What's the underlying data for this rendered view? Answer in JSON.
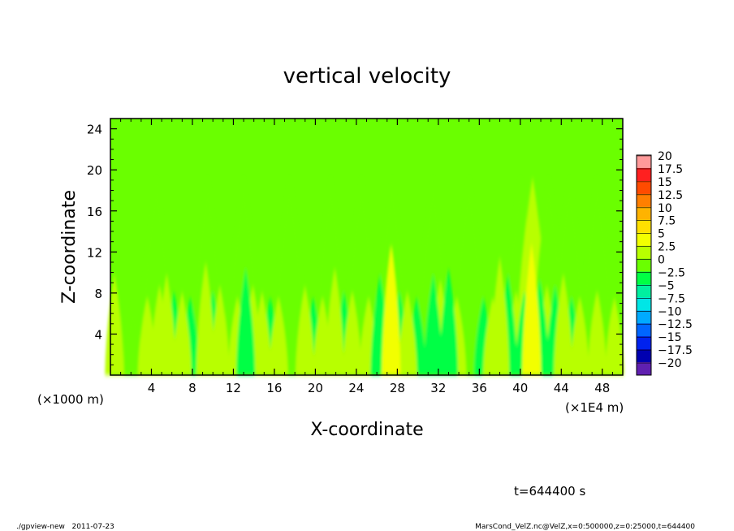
{
  "chart_data": {
    "type": "heatmap",
    "title": "vertical velocity",
    "xlabel": "X-coordinate",
    "ylabel": "Z-coordinate",
    "x_unit_label": "(×1E4 m)",
    "y_unit_label": "(×1000 m)",
    "xlim": [
      0,
      50
    ],
    "ylim": [
      0,
      25
    ],
    "x_ticks": [
      4,
      8,
      12,
      16,
      20,
      24,
      28,
      32,
      36,
      40,
      44,
      48
    ],
    "x_tick_labels": [
      "4",
      "8",
      "12",
      "16",
      "20",
      "24",
      "28",
      "32",
      "36",
      "40",
      "44",
      "48"
    ],
    "y_ticks": [
      4,
      8,
      12,
      16,
      20,
      24
    ],
    "y_tick_labels": [
      "4",
      "8",
      "12",
      "16",
      "20",
      "24"
    ],
    "colorbar": {
      "levels": [
        20,
        17.5,
        15,
        12.5,
        10,
        7.5,
        5,
        2.5,
        0,
        -2.5,
        -5,
        -7.5,
        -10,
        -12.5,
        -15,
        -17.5,
        -20
      ],
      "labels": [
        "20",
        "17.5",
        "15",
        "12.5",
        "10",
        "7.5",
        "5",
        "2.5",
        "0",
        "−2.5",
        "−5",
        "−7.5",
        "−10",
        "−12.5",
        "−15",
        "−17.5",
        "−20"
      ],
      "colors": [
        "#ff9a9a",
        "#ff2020",
        "#ff4b00",
        "#ff7f00",
        "#ffb300",
        "#ffe000",
        "#f2ff00",
        "#b8ff00",
        "#6aff00",
        "#00ff44",
        "#00f0a0",
        "#00e6e6",
        "#00aaff",
        "#0066ff",
        "#0022ee",
        "#0000b0",
        "#6020b0"
      ]
    },
    "plumes": [
      {
        "x": 0.4,
        "amp": 9
      },
      {
        "x": 2.2,
        "amp": -4
      },
      {
        "x": 3.6,
        "amp": 5
      },
      {
        "x": 4.8,
        "amp": 7
      },
      {
        "x": 5.5,
        "amp": 9
      },
      {
        "x": 6.2,
        "amp": -6
      },
      {
        "x": 7.0,
        "amp": 6
      },
      {
        "x": 7.8,
        "amp": -5
      },
      {
        "x": 8.6,
        "amp": 4
      },
      {
        "x": 9.3,
        "amp": 11
      },
      {
        "x": 10.0,
        "amp": -6
      },
      {
        "x": 10.7,
        "amp": 7
      },
      {
        "x": 11.5,
        "amp": -4
      },
      {
        "x": 12.4,
        "amp": 5
      },
      {
        "x": 13.2,
        "amp": -10
      },
      {
        "x": 13.9,
        "amp": 7
      },
      {
        "x": 14.8,
        "amp": 6
      },
      {
        "x": 15.6,
        "amp": -5
      },
      {
        "x": 16.4,
        "amp": 5
      },
      {
        "x": 17.3,
        "amp": -4
      },
      {
        "x": 18.1,
        "amp": 4
      },
      {
        "x": 19.0,
        "amp": 7
      },
      {
        "x": 19.8,
        "amp": -5
      },
      {
        "x": 20.7,
        "amp": 5
      },
      {
        "x": 21.9,
        "amp": 10
      },
      {
        "x": 22.8,
        "amp": -6
      },
      {
        "x": 23.6,
        "amp": 6
      },
      {
        "x": 24.4,
        "amp": -4
      },
      {
        "x": 25.2,
        "amp": 5
      },
      {
        "x": 26.3,
        "amp": -9
      },
      {
        "x": 27.4,
        "amp": 14
      },
      {
        "x": 28.2,
        "amp": -6
      },
      {
        "x": 29.0,
        "amp": 6
      },
      {
        "x": 29.9,
        "amp": -5
      },
      {
        "x": 30.6,
        "amp": 4
      },
      {
        "x": 31.5,
        "amp": -9
      },
      {
        "x": 32.2,
        "amp": 8
      },
      {
        "x": 33.0,
        "amp": -10
      },
      {
        "x": 33.8,
        "amp": 5
      },
      {
        "x": 34.7,
        "amp": -4
      },
      {
        "x": 35.6,
        "amp": 4
      },
      {
        "x": 36.4,
        "amp": -5
      },
      {
        "x": 37.3,
        "amp": 5
      },
      {
        "x": 38.0,
        "amp": 12
      },
      {
        "x": 38.8,
        "amp": -9
      },
      {
        "x": 39.6,
        "amp": 6
      },
      {
        "x": 40.4,
        "amp": -6
      },
      {
        "x": 41.1,
        "amp": 15
      },
      {
        "x": 41.9,
        "amp": -8
      },
      {
        "x": 42.6,
        "amp": 7
      },
      {
        "x": 43.4,
        "amp": -7
      },
      {
        "x": 44.2,
        "amp": 9
      },
      {
        "x": 45.0,
        "amp": -5
      },
      {
        "x": 45.8,
        "amp": 5
      },
      {
        "x": 46.7,
        "amp": -4
      },
      {
        "x": 47.5,
        "amp": 6
      },
      {
        "x": 48.3,
        "amp": -4
      },
      {
        "x": 49.2,
        "amp": 5
      }
    ],
    "upper_bands": [
      {
        "x": 4.5,
        "amp": 3
      },
      {
        "x": 9.5,
        "amp": 3
      },
      {
        "x": 13.0,
        "amp": 2
      },
      {
        "x": 17.5,
        "amp": 3
      },
      {
        "x": 21.5,
        "amp": 3
      },
      {
        "x": 24.5,
        "amp": 2
      },
      {
        "x": 27.5,
        "amp": 3
      },
      {
        "x": 31.5,
        "amp": 2
      },
      {
        "x": 35.0,
        "amp": 2
      },
      {
        "x": 40.0,
        "amp": 3
      },
      {
        "x": 41.2,
        "amp": 6
      },
      {
        "x": 42.8,
        "amp": 4
      },
      {
        "x": 44.8,
        "amp": 2
      },
      {
        "x": 47.5,
        "amp": 2
      }
    ]
  },
  "time_label": "t=644400 s",
  "footer": {
    "left": "./gpview-new   2011-07-23",
    "right": "MarsCond_VelZ.nc@VelZ,x=0:500000,z=0:25000,t=644400"
  }
}
